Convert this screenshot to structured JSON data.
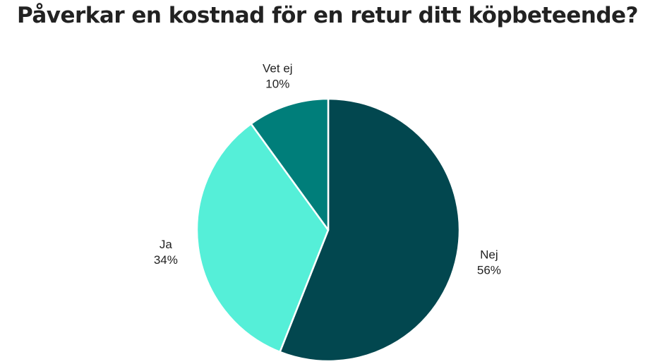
{
  "chart_data": {
    "type": "pie",
    "title": "Påverkar en kostnad för en retur ditt köpbeteende?",
    "start_angle_deg": 0,
    "direction": "clockwise",
    "legend": "none",
    "slices": [
      {
        "name": "Nej",
        "value": 56,
        "label": "56%",
        "color": "#02474f"
      },
      {
        "name": "Ja",
        "value": 34,
        "label": "34%",
        "color": "#55efd8"
      },
      {
        "name": "Vet ej",
        "value": 10,
        "label": "10%",
        "color": "#007e7a"
      }
    ]
  }
}
